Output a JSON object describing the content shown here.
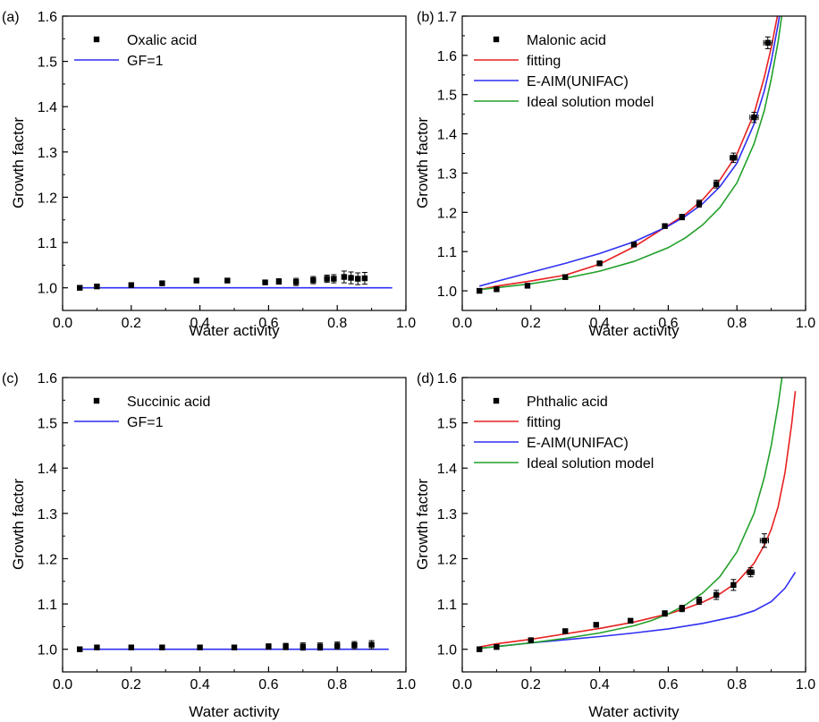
{
  "chart_data": [
    {
      "panel_label": "(a)",
      "type": "scatter",
      "xlabel": "Water activity",
      "ylabel": "Growth factor",
      "xlim": [
        0.0,
        1.0
      ],
      "ylim": [
        0.95,
        1.6
      ],
      "xticks": [
        0.0,
        0.2,
        0.4,
        0.6,
        0.8,
        1.0
      ],
      "xtick_labels": [
        "0.0",
        "0.2",
        "0.4",
        "0.6",
        "0.8",
        "1.0"
      ],
      "yticks": [
        1.0,
        1.1,
        1.2,
        1.3,
        1.4,
        1.5,
        1.6
      ],
      "ytick_labels": [
        "1.0",
        "1.1",
        "1.2",
        "1.3",
        "1.4",
        "1.5",
        "1.6"
      ],
      "legend_position": "top-left",
      "series": [
        {
          "name": "Oxalic acid",
          "kind": "points",
          "color": "#000000",
          "x": [
            0.05,
            0.1,
            0.2,
            0.29,
            0.39,
            0.48,
            0.59,
            0.63,
            0.68,
            0.73,
            0.77,
            0.79,
            0.82,
            0.84,
            0.86,
            0.88
          ],
          "y": [
            1.0,
            1.003,
            1.006,
            1.01,
            1.016,
            1.016,
            1.012,
            1.014,
            1.013,
            1.017,
            1.02,
            1.02,
            1.024,
            1.022,
            1.02,
            1.021
          ],
          "yerr": [
            0,
            0,
            0,
            0,
            0,
            0,
            0.004,
            0.006,
            0.008,
            0.008,
            0.008,
            0.009,
            0.013,
            0.013,
            0.013,
            0.013
          ]
        },
        {
          "name": "GF=1",
          "kind": "line",
          "color": "#2f2ff2",
          "x": [
            0.05,
            0.96
          ],
          "y": [
            1.0,
            1.0
          ]
        }
      ]
    },
    {
      "panel_label": "(b)",
      "type": "scatter",
      "xlabel": "Water activity",
      "ylabel": "Growth factor",
      "xlim": [
        0.0,
        1.0
      ],
      "ylim": [
        0.95,
        1.7
      ],
      "xticks": [
        0.0,
        0.2,
        0.4,
        0.6,
        0.8,
        1.0
      ],
      "xtick_labels": [
        "0.0",
        "0.2",
        "0.4",
        "0.6",
        "0.8",
        "1.0"
      ],
      "yticks": [
        1.0,
        1.1,
        1.2,
        1.3,
        1.4,
        1.5,
        1.6,
        1.7
      ],
      "ytick_labels": [
        "1.0",
        "1.1",
        "1.2",
        "1.3",
        "1.4",
        "1.5",
        "1.6",
        "1.7"
      ],
      "legend_position": "top-left",
      "series": [
        {
          "name": "Malonic acid",
          "kind": "points",
          "color": "#000000",
          "x": [
            0.05,
            0.1,
            0.19,
            0.3,
            0.4,
            0.5,
            0.59,
            0.64,
            0.69,
            0.74,
            0.79,
            0.85,
            0.89
          ],
          "y": [
            1.0,
            1.004,
            1.013,
            1.035,
            1.07,
            1.118,
            1.165,
            1.188,
            1.222,
            1.272,
            1.339,
            1.442,
            1.632
          ],
          "yerr": [
            0,
            0,
            0,
            0,
            0,
            0,
            0.005,
            0.007,
            0.009,
            0.01,
            0.012,
            0.013,
            0.015
          ],
          "xerr": [
            0,
            0,
            0,
            0,
            0,
            0,
            0,
            0,
            0,
            0,
            0.01,
            0.012,
            0.012
          ]
        },
        {
          "name": "fitting",
          "kind": "line",
          "color": "#e82020",
          "x": [
            0.05,
            0.1,
            0.2,
            0.3,
            0.4,
            0.5,
            0.6,
            0.65,
            0.7,
            0.75,
            0.8,
            0.85,
            0.88,
            0.9,
            0.92,
            0.93
          ],
          "y": [
            1.003,
            1.012,
            1.025,
            1.04,
            1.068,
            1.112,
            1.167,
            1.195,
            1.232,
            1.282,
            1.348,
            1.452,
            1.545,
            1.62,
            1.71,
            1.76
          ]
        },
        {
          "name": "E-AIM(UNIFAC)",
          "kind": "line",
          "color": "#2f2ff2",
          "x": [
            0.05,
            0.1,
            0.2,
            0.3,
            0.4,
            0.5,
            0.6,
            0.65,
            0.7,
            0.75,
            0.8,
            0.85,
            0.88,
            0.9,
            0.92,
            0.935
          ],
          "y": [
            1.012,
            1.024,
            1.047,
            1.07,
            1.095,
            1.125,
            1.165,
            1.19,
            1.222,
            1.265,
            1.325,
            1.425,
            1.51,
            1.585,
            1.68,
            1.76
          ]
        },
        {
          "name": "Ideal solution model",
          "kind": "line",
          "color": "#22a02a",
          "x": [
            0.05,
            0.1,
            0.2,
            0.3,
            0.4,
            0.5,
            0.6,
            0.65,
            0.7,
            0.75,
            0.8,
            0.85,
            0.88,
            0.9,
            0.92,
            0.94
          ],
          "y": [
            1.003,
            1.008,
            1.018,
            1.032,
            1.05,
            1.075,
            1.11,
            1.135,
            1.168,
            1.212,
            1.275,
            1.375,
            1.46,
            1.54,
            1.635,
            1.76
          ]
        }
      ]
    },
    {
      "panel_label": "(c)",
      "type": "scatter",
      "xlabel": "Water activity",
      "ylabel": "Growth factor",
      "xlim": [
        0.0,
        1.0
      ],
      "ylim": [
        0.95,
        1.6
      ],
      "xticks": [
        0.0,
        0.2,
        0.4,
        0.6,
        0.8,
        1.0
      ],
      "xtick_labels": [
        "0.0",
        "0.2",
        "0.4",
        "0.6",
        "0.8",
        "1.0"
      ],
      "yticks": [
        1.0,
        1.1,
        1.2,
        1.3,
        1.4,
        1.5,
        1.6
      ],
      "ytick_labels": [
        "1.0",
        "1.1",
        "1.2",
        "1.3",
        "1.4",
        "1.5",
        "1.6"
      ],
      "legend_position": "top-left",
      "series": [
        {
          "name": "Succinic acid",
          "kind": "points",
          "color": "#000000",
          "x": [
            0.05,
            0.1,
            0.2,
            0.29,
            0.4,
            0.5,
            0.6,
            0.65,
            0.7,
            0.75,
            0.8,
            0.85,
            0.9
          ],
          "y": [
            1.0,
            1.004,
            1.004,
            1.004,
            1.004,
            1.004,
            1.006,
            1.006,
            1.006,
            1.006,
            1.008,
            1.009,
            1.01
          ],
          "yerr": [
            0,
            0,
            0,
            0,
            0,
            0,
            0.006,
            0.007,
            0.008,
            0.008,
            0.008,
            0.008,
            0.009
          ]
        },
        {
          "name": "GF=1",
          "kind": "line",
          "color": "#2f2ff2",
          "x": [
            0.05,
            0.95
          ],
          "y": [
            1.0,
            1.0
          ]
        }
      ]
    },
    {
      "panel_label": "(d)",
      "type": "scatter",
      "xlabel": "Water activity",
      "ylabel": "Growth factor",
      "xlim": [
        0.0,
        1.0
      ],
      "ylim": [
        0.95,
        1.6
      ],
      "xticks": [
        0.0,
        0.2,
        0.4,
        0.6,
        0.8,
        1.0
      ],
      "xtick_labels": [
        "0.0",
        "0.2",
        "0.4",
        "0.6",
        "0.8",
        "1.0"
      ],
      "yticks": [
        1.0,
        1.1,
        1.2,
        1.3,
        1.4,
        1.5,
        1.6
      ],
      "ytick_labels": [
        "1.0",
        "1.1",
        "1.2",
        "1.3",
        "1.4",
        "1.5",
        "1.6"
      ],
      "legend_position": "top-left",
      "series": [
        {
          "name": "Phthalic acid",
          "kind": "points",
          "color": "#000000",
          "x": [
            0.05,
            0.1,
            0.2,
            0.3,
            0.39,
            0.49,
            0.59,
            0.64,
            0.69,
            0.74,
            0.79,
            0.84,
            0.88
          ],
          "y": [
            1.0,
            1.005,
            1.02,
            1.04,
            1.054,
            1.063,
            1.079,
            1.09,
            1.107,
            1.12,
            1.142,
            1.17,
            1.24
          ],
          "yerr": [
            0,
            0,
            0,
            0,
            0,
            0,
            0.006,
            0.007,
            0.008,
            0.01,
            0.012,
            0.01,
            0.015
          ],
          "xerr": [
            0,
            0,
            0,
            0,
            0,
            0,
            0,
            0,
            0,
            0,
            0,
            0.01,
            0.012
          ]
        },
        {
          "name": "fitting",
          "kind": "line",
          "color": "#e82020",
          "x": [
            0.05,
            0.1,
            0.2,
            0.3,
            0.4,
            0.5,
            0.6,
            0.65,
            0.7,
            0.75,
            0.8,
            0.85,
            0.88,
            0.9,
            0.92,
            0.94,
            0.96,
            0.97
          ],
          "y": [
            1.005,
            1.012,
            1.022,
            1.034,
            1.046,
            1.06,
            1.078,
            1.09,
            1.104,
            1.122,
            1.148,
            1.19,
            1.23,
            1.265,
            1.315,
            1.39,
            1.5,
            1.57
          ]
        },
        {
          "name": "E-AIM(UNIFAC)",
          "kind": "line",
          "color": "#2f2ff2",
          "x": [
            0.05,
            0.1,
            0.2,
            0.3,
            0.4,
            0.5,
            0.6,
            0.7,
            0.8,
            0.85,
            0.9,
            0.94,
            0.97
          ],
          "y": [
            1.002,
            1.006,
            1.014,
            1.021,
            1.028,
            1.036,
            1.045,
            1.057,
            1.073,
            1.085,
            1.105,
            1.135,
            1.17
          ]
        },
        {
          "name": "Ideal solution model",
          "kind": "line",
          "color": "#22a02a",
          "x": [
            0.05,
            0.1,
            0.2,
            0.3,
            0.4,
            0.5,
            0.55,
            0.6,
            0.65,
            0.7,
            0.75,
            0.8,
            0.85,
            0.88,
            0.9,
            0.92,
            0.935
          ],
          "y": [
            1.002,
            1.006,
            1.014,
            1.024,
            1.036,
            1.052,
            1.063,
            1.078,
            1.098,
            1.124,
            1.16,
            1.215,
            1.3,
            1.38,
            1.45,
            1.54,
            1.62
          ]
        }
      ]
    }
  ]
}
